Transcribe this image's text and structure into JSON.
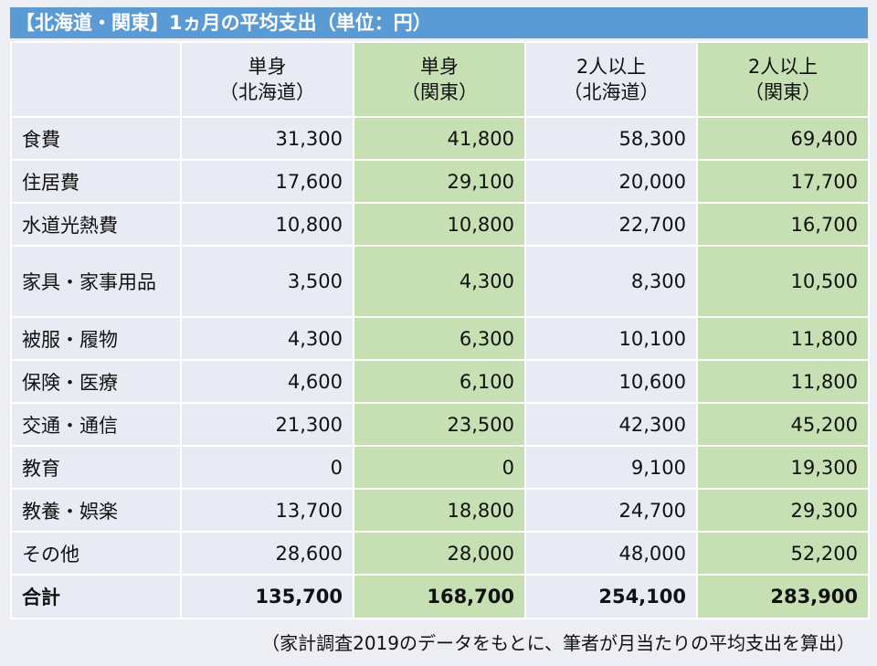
{
  "title": "【北海道・関東】1ヵ月の平均支出（単位：円）",
  "columns": [
    {
      "line1": "単身",
      "line2": "（北海道）"
    },
    {
      "line1": "単身",
      "line2": "（関東）"
    },
    {
      "line1": "2人以上",
      "line2": "（北海道）"
    },
    {
      "line1": "2人以上",
      "line2": "（関東）"
    }
  ],
  "rows": [
    {
      "label": "食費",
      "values": [
        "31,300",
        "41,800",
        "58,300",
        "69,400"
      ]
    },
    {
      "label": "住居費",
      "values": [
        "17,600",
        "29,100",
        "20,000",
        "17,700"
      ]
    },
    {
      "label": "水道光熱費",
      "values": [
        "10,800",
        "10,800",
        "22,700",
        "16,700"
      ]
    },
    {
      "label": "家具・家事用品",
      "values": [
        "3,500",
        "4,300",
        "8,300",
        "10,500"
      ]
    },
    {
      "label": "被服・履物",
      "values": [
        "4,300",
        "6,300",
        "10,100",
        "11,800"
      ]
    },
    {
      "label": "保険・医療",
      "values": [
        "4,600",
        "6,100",
        "10,600",
        "11,800"
      ]
    },
    {
      "label": "交通・通信",
      "values": [
        "21,300",
        "23,500",
        "42,300",
        "45,200"
      ]
    },
    {
      "label": "教育",
      "values": [
        "0",
        "0",
        "9,100",
        "19,300"
      ]
    },
    {
      "label": "教養・娯楽",
      "values": [
        "13,700",
        "18,800",
        "24,700",
        "29,300"
      ]
    },
    {
      "label": "その他",
      "values": [
        "28,600",
        "28,000",
        "48,000",
        "52,200"
      ]
    }
  ],
  "total": {
    "label": "合計",
    "values": [
      "135,700",
      "168,700",
      "254,100",
      "283,900"
    ]
  },
  "note": "（家計調査2019のデータをもとに、筆者が月当たりの平均支出を算出）",
  "colors": {
    "title_bg": "#5b9bd5",
    "green_col": "#c6e0b4",
    "blue_col": "#e8ebf3"
  }
}
